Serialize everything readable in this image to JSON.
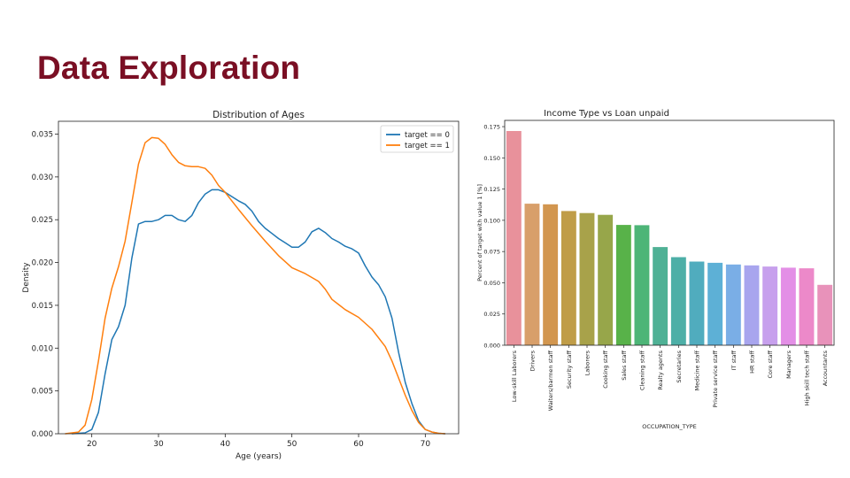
{
  "slide": {
    "title": "Data Exploration"
  },
  "chart_data": [
    {
      "type": "line",
      "title": "Distribution of Ages",
      "xlabel": "Age (years)",
      "ylabel": "Density",
      "xlim": [
        15,
        75
      ],
      "ylim": [
        0,
        0.0365
      ],
      "xticks": [
        20,
        30,
        40,
        50,
        60,
        70
      ],
      "yticks": [
        0,
        0.005,
        0.01,
        0.015,
        0.02,
        0.025,
        0.03,
        0.035
      ],
      "xtick_labels": [
        "20",
        "30",
        "40",
        "50",
        "60",
        "70"
      ],
      "ytick_labels": [
        "0.000",
        "0.005",
        "0.010",
        "0.015",
        "0.020",
        "0.025",
        "0.030",
        "0.035"
      ],
      "grid": false,
      "legend": "top-right",
      "series": [
        {
          "name": "target == 0",
          "color": "#1f77b4",
          "x": [
            17,
            19,
            20,
            21,
            22,
            23,
            24,
            25,
            26,
            27,
            28,
            29,
            30,
            31,
            32,
            33,
            34,
            35,
            36,
            37,
            38,
            39,
            40,
            41,
            42,
            43,
            44,
            45,
            46,
            47,
            48,
            49,
            50,
            51,
            52,
            53,
            54,
            55,
            56,
            57,
            58,
            59,
            60,
            61,
            62,
            63,
            64,
            65,
            66,
            67,
            68,
            69,
            70,
            71,
            72,
            73
          ],
          "y": [
            0,
            0.0001,
            0.0005,
            0.0025,
            0.007,
            0.011,
            0.0125,
            0.015,
            0.0205,
            0.0245,
            0.0248,
            0.0248,
            0.025,
            0.0255,
            0.0255,
            0.025,
            0.0248,
            0.0255,
            0.027,
            0.028,
            0.0285,
            0.0285,
            0.0282,
            0.0277,
            0.0272,
            0.0268,
            0.026,
            0.0248,
            0.024,
            0.0234,
            0.0228,
            0.0223,
            0.0218,
            0.0218,
            0.0224,
            0.0236,
            0.024,
            0.0235,
            0.0228,
            0.0224,
            0.0219,
            0.0216,
            0.0211,
            0.0196,
            0.0183,
            0.0174,
            0.016,
            0.0135,
            0.0095,
            0.006,
            0.0035,
            0.0015,
            0.0005,
            0.0002,
            5e-05,
            0
          ]
        },
        {
          "name": "target == 1",
          "color": "#ff7f0e",
          "x": [
            16,
            18,
            19,
            20,
            21,
            22,
            23,
            24,
            25,
            26,
            27,
            28,
            29,
            30,
            31,
            32,
            33,
            34,
            35,
            36,
            37,
            38,
            39,
            40,
            42,
            44,
            46,
            48,
            50,
            52,
            54,
            55,
            56,
            57,
            58,
            60,
            62,
            64,
            65,
            66,
            67,
            68,
            69,
            70,
            71,
            72,
            73
          ],
          "y": [
            0,
            0.0002,
            0.001,
            0.004,
            0.0085,
            0.0135,
            0.017,
            0.0195,
            0.0225,
            0.027,
            0.0315,
            0.034,
            0.0346,
            0.0345,
            0.0338,
            0.0326,
            0.0317,
            0.0313,
            0.0312,
            0.0312,
            0.031,
            0.0302,
            0.029,
            0.0282,
            0.0262,
            0.0243,
            0.0225,
            0.0208,
            0.0194,
            0.0187,
            0.0178,
            0.0169,
            0.0157,
            0.0151,
            0.0145,
            0.0136,
            0.0122,
            0.0102,
            0.0085,
            0.0065,
            0.0045,
            0.0027,
            0.0013,
            0.0005,
            0.0002,
            5e-05,
            0
          ]
        }
      ]
    },
    {
      "type": "bar",
      "title": "Income Type vs Loan unpaid",
      "xlabel": "OCCUPATION_TYPE",
      "ylabel": "Percent of target with value 1 [%]",
      "ylim": [
        0,
        0.18
      ],
      "yticks": [
        0,
        0.025,
        0.05,
        0.075,
        0.1,
        0.125,
        0.15,
        0.175
      ],
      "ytick_labels": [
        "0.000",
        "0.025",
        "0.050",
        "0.075",
        "0.100",
        "0.125",
        "0.150",
        "0.175"
      ],
      "grid": false,
      "categories": [
        "Low-skill Laborers",
        "Drivers",
        "Waiters/barmen staff",
        "Security staff",
        "Laborers",
        "Cooking staff",
        "Sales staff",
        "Cleaning staff",
        "Realty agents",
        "Secretaries",
        "Medicine staff",
        "Private service staff",
        "IT staff",
        "HR staff",
        "Core staff",
        "Managers",
        "High skill tech staff",
        "Accountants"
      ],
      "values": [
        0.1715,
        0.1133,
        0.1128,
        0.1074,
        0.1058,
        0.1044,
        0.0963,
        0.0961,
        0.0786,
        0.0705,
        0.067,
        0.066,
        0.0646,
        0.0639,
        0.063,
        0.0621,
        0.0616,
        0.0483
      ],
      "colors": [
        "#e8919b",
        "#d89f6a",
        "#d2964f",
        "#c09d48",
        "#a8a24a",
        "#97a64a",
        "#58b249",
        "#4db577",
        "#4fb195",
        "#4dafa7",
        "#50acbe",
        "#5db0d6",
        "#7aaee6",
        "#a8a5ee",
        "#c7a0ed",
        "#e38fe6",
        "#ec89c9",
        "#e892ba"
      ]
    }
  ]
}
